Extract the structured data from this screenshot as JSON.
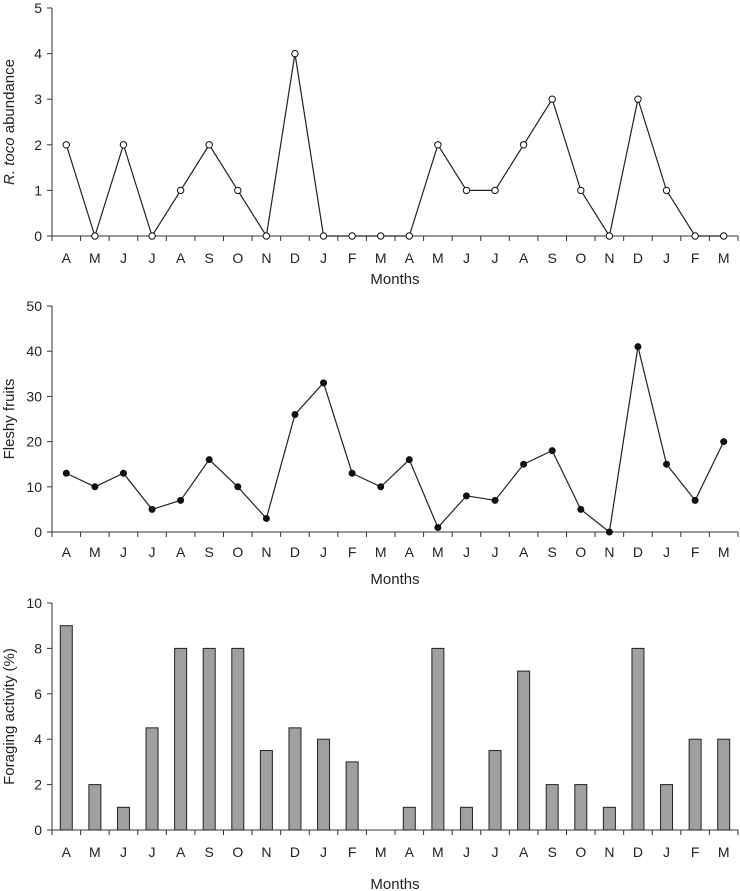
{
  "chart_data": [
    {
      "type": "line",
      "categories": [
        "A",
        "M",
        "J",
        "J",
        "A",
        "S",
        "O",
        "N",
        "D",
        "J",
        "F",
        "M",
        "A",
        "M",
        "J",
        "J",
        "A",
        "S",
        "O",
        "N",
        "D",
        "J",
        "F",
        "M"
      ],
      "values": [
        2,
        0,
        2,
        0,
        1,
        2,
        1,
        0,
        4,
        0,
        0,
        0,
        0,
        2,
        1,
        1,
        2,
        3,
        1,
        0,
        3,
        1,
        0,
        0
      ],
      "ylabel_italic": "R. toco",
      "ylabel_rest": " abundance",
      "xlabel": "Months",
      "ylim": [
        0,
        5
      ],
      "yticks": [
        0,
        1,
        2,
        3,
        4,
        5
      ],
      "marker": "open-circle",
      "grid": false
    },
    {
      "type": "line",
      "categories": [
        "A",
        "M",
        "J",
        "J",
        "A",
        "S",
        "O",
        "N",
        "D",
        "J",
        "F",
        "M",
        "A",
        "M",
        "J",
        "J",
        "A",
        "S",
        "O",
        "N",
        "D",
        "J",
        "F",
        "M"
      ],
      "values": [
        13,
        10,
        13,
        5,
        7,
        16,
        10,
        3,
        26,
        33,
        13,
        10,
        16,
        1,
        8,
        7,
        15,
        18,
        5,
        0,
        41,
        15,
        7,
        20
      ],
      "ylabel": "Fleshy fruits",
      "xlabel": "Months",
      "ylim": [
        0,
        50
      ],
      "yticks": [
        0,
        10,
        20,
        30,
        40,
        50
      ],
      "marker": "filled-circle",
      "grid": false
    },
    {
      "type": "bar",
      "categories": [
        "A",
        "M",
        "J",
        "J",
        "A",
        "S",
        "O",
        "N",
        "D",
        "J",
        "F",
        "M",
        "A",
        "M",
        "J",
        "J",
        "A",
        "S",
        "O",
        "N",
        "D",
        "J",
        "F",
        "M"
      ],
      "values": [
        9,
        2,
        1,
        4.5,
        8,
        8,
        8,
        3.5,
        4.5,
        4,
        3,
        0,
        1,
        8,
        1,
        3.5,
        7,
        2,
        2,
        1,
        8,
        2,
        4,
        4
      ],
      "ylabel": "Foraging activity (%)",
      "xlabel": "Months",
      "ylim": [
        0,
        10
      ],
      "yticks": [
        0,
        2,
        4,
        6,
        8,
        10
      ],
      "bar_color": "#a0a0a0",
      "grid": false
    }
  ]
}
